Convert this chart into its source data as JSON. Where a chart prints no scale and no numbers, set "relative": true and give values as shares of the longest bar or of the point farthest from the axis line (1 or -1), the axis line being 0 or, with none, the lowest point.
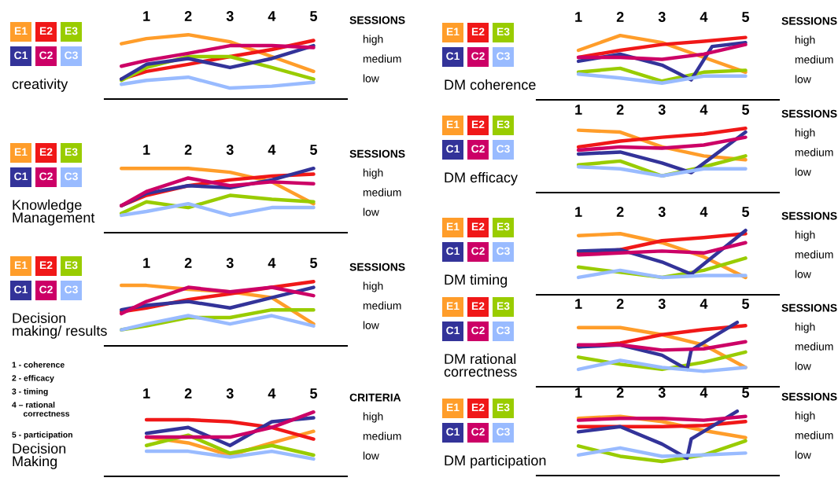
{
  "chart_data": [
    {
      "type": "line",
      "title": "creativity",
      "ylabel": "SESSIONS",
      "legend": "left",
      "relative": true,
      "x": [
        0.4,
        1,
        2,
        3,
        4,
        5
      ],
      "xlim": [
        0,
        5.8
      ],
      "xticks": [
        1,
        2,
        3,
        4,
        5
      ],
      "annotations": [
        "high",
        "medium",
        "low"
      ],
      "series": [
        {
          "name": "E1",
          "color": "#ff9d2a",
          "values": [
            0.86,
            0.94,
            1.0,
            0.89,
            0.66,
            0.43
          ]
        },
        {
          "name": "E2",
          "color": "#f01818",
          "values": [
            0.31,
            0.43,
            0.54,
            0.66,
            0.77,
            0.91
          ]
        },
        {
          "name": "E3",
          "color": "#99cc00",
          "values": [
            0.29,
            0.49,
            0.66,
            0.66,
            0.49,
            0.31
          ]
        },
        {
          "name": "C1",
          "color": "#333399",
          "values": [
            0.31,
            0.54,
            0.63,
            0.49,
            0.63,
            0.83
          ]
        },
        {
          "name": "C2",
          "color": "#cc0066",
          "values": [
            0.51,
            0.6,
            0.71,
            0.83,
            0.83,
            0.8
          ]
        },
        {
          "name": "C3",
          "color": "#99bbff",
          "values": [
            0.23,
            0.29,
            0.34,
            0.17,
            0.2,
            0.26
          ]
        }
      ]
    },
    {
      "type": "line",
      "title": "Knowledge\nManagement",
      "ylabel": "SESSIONS",
      "legend": "left",
      "relative": true,
      "x": [
        0.4,
        1,
        2,
        3,
        4,
        5
      ],
      "xlim": [
        0,
        5.8
      ],
      "xticks": [
        1,
        2,
        3,
        4,
        5
      ],
      "annotations": [
        "high",
        "medium",
        "low"
      ],
      "series": [
        {
          "name": "E1",
          "color": "#ff9d2a",
          "values": [
            1.0,
            1.0,
            1.0,
            0.94,
            0.79,
            0.45
          ]
        },
        {
          "name": "E2",
          "color": "#f01818",
          "values": [
            0.42,
            0.58,
            0.73,
            0.82,
            0.88,
            0.91
          ]
        },
        {
          "name": "E3",
          "color": "#99cc00",
          "values": [
            0.3,
            0.48,
            0.39,
            0.58,
            0.52,
            0.48
          ]
        },
        {
          "name": "C1",
          "color": "#333399",
          "values": [
            0.42,
            0.61,
            0.73,
            0.7,
            0.82,
            1.0
          ]
        },
        {
          "name": "C2",
          "color": "#cc0066",
          "values": [
            0.42,
            0.64,
            0.85,
            0.73,
            0.79,
            0.76
          ]
        },
        {
          "name": "C3",
          "color": "#99bbff",
          "values": [
            0.27,
            0.33,
            0.45,
            0.27,
            0.39,
            0.39
          ]
        }
      ]
    },
    {
      "type": "line",
      "title": "Decision\nmaking/ results",
      "ylabel": "SESSIONS",
      "legend": "left",
      "relative": true,
      "x": [
        0.4,
        1,
        2,
        3,
        4,
        5
      ],
      "xlim": [
        0,
        5.8
      ],
      "xticks": [
        1,
        2,
        3,
        4,
        5
      ],
      "annotations": [
        "high",
        "medium",
        "low"
      ],
      "series": [
        {
          "name": "E1",
          "color": "#ff9d2a",
          "values": [
            0.94,
            0.94,
            0.88,
            0.84,
            0.75,
            0.34
          ]
        },
        {
          "name": "E2",
          "color": "#f01818",
          "values": [
            0.53,
            0.59,
            0.72,
            0.81,
            0.91,
            1.0
          ]
        },
        {
          "name": "E3",
          "color": "#99cc00",
          "values": [
            0.25,
            0.31,
            0.44,
            0.44,
            0.56,
            0.56
          ]
        },
        {
          "name": "C1",
          "color": "#333399",
          "values": [
            0.56,
            0.63,
            0.69,
            0.59,
            0.75,
            0.91
          ]
        },
        {
          "name": "C2",
          "color": "#cc0066",
          "values": [
            0.5,
            0.69,
            0.91,
            0.84,
            0.91,
            0.78
          ]
        },
        {
          "name": "C3",
          "color": "#99bbff",
          "values": [
            0.25,
            0.34,
            0.47,
            0.34,
            0.47,
            0.31
          ]
        }
      ]
    },
    {
      "type": "line",
      "title": "Decision\nMaking",
      "ylabel": "CRITERIA",
      "relative": true,
      "x": [
        1,
        2,
        3,
        4,
        5
      ],
      "xlim": [
        0,
        5.8
      ],
      "xticks": [
        1,
        2,
        3,
        4,
        5
      ],
      "annotations": [
        "1 - coherence",
        "2 - efficacy",
        "3 - timing",
        "4 – rational\n     correctness",
        "5 - participation",
        "high",
        "medium",
        "low"
      ],
      "series": [
        {
          "color": "#ff9d2a",
          "values": [
            0.61,
            0.52,
            0.33,
            0.52,
            0.7
          ]
        },
        {
          "color": "#f01818",
          "values": [
            0.88,
            0.88,
            0.85,
            0.76,
            0.58
          ]
        },
        {
          "color": "#99cc00",
          "values": [
            0.48,
            0.64,
            0.36,
            0.48,
            0.33
          ]
        },
        {
          "color": "#333399",
          "values": [
            0.67,
            0.76,
            0.48,
            0.85,
            0.91
          ]
        },
        {
          "color": "#cc0066",
          "values": [
            0.61,
            0.61,
            0.61,
            0.76,
            1.0
          ]
        },
        {
          "color": "#99bbff",
          "values": [
            0.39,
            0.39,
            0.3,
            0.39,
            0.27
          ]
        }
      ]
    },
    {
      "type": "line",
      "title": "DM coherence",
      "ylabel": "SESSIONS",
      "legend": "left",
      "relative": true,
      "x": [
        1,
        2,
        3,
        4,
        5
      ],
      "xlim": [
        0,
        5.8
      ],
      "xticks": [
        1,
        2,
        3,
        4,
        5
      ],
      "annotations": [
        "high",
        "medium",
        "low"
      ],
      "series": [
        {
          "name": "E1",
          "color": "#ff9d2a",
          "values": [
            0.77,
            1.0,
            0.89,
            0.66,
            0.43
          ]
        },
        {
          "name": "E2",
          "color": "#f01818",
          "values": [
            0.66,
            0.77,
            0.86,
            0.91,
            0.97
          ]
        },
        {
          "name": "E3",
          "color": "#99cc00",
          "values": [
            0.43,
            0.49,
            0.29,
            0.43,
            0.46
          ]
        },
        {
          "name": "C1",
          "color": "#333399",
          "x": [
            1,
            2,
            3,
            3.7,
            4.2,
            5
          ],
          "values": [
            0.6,
            0.71,
            0.54,
            0.31,
            0.83,
            0.89
          ]
        },
        {
          "name": "C2",
          "color": "#cc0066",
          "values": [
            0.66,
            0.66,
            0.63,
            0.71,
            0.86
          ]
        },
        {
          "name": "C3",
          "color": "#99bbff",
          "values": [
            0.4,
            0.34,
            0.26,
            0.37,
            0.37
          ]
        }
      ]
    },
    {
      "type": "line",
      "title": "DM efficacy",
      "ylabel": "SESSIONS",
      "legend": "left",
      "relative": true,
      "x": [
        1,
        2,
        3,
        4,
        5
      ],
      "xlim": [
        0,
        5.8
      ],
      "xticks": [
        1,
        2,
        3,
        4,
        5
      ],
      "annotations": [
        "high",
        "medium",
        "low"
      ],
      "series": [
        {
          "name": "E1",
          "color": "#ff9d2a",
          "values": [
            0.97,
            0.94,
            0.71,
            0.57,
            0.51
          ]
        },
        {
          "name": "E2",
          "color": "#f01818",
          "values": [
            0.71,
            0.8,
            0.86,
            0.91,
            1.0
          ]
        },
        {
          "name": "E3",
          "color": "#99cc00",
          "values": [
            0.43,
            0.49,
            0.26,
            0.4,
            0.57
          ]
        },
        {
          "name": "C1",
          "color": "#333399",
          "x": [
            1,
            2,
            3,
            3.7,
            5
          ],
          "values": [
            0.6,
            0.63,
            0.46,
            0.31,
            0.94
          ]
        },
        {
          "name": "C2",
          "color": "#cc0066",
          "values": [
            0.66,
            0.71,
            0.69,
            0.74,
            0.86
          ]
        },
        {
          "name": "C3",
          "color": "#99bbff",
          "values": [
            0.4,
            0.37,
            0.26,
            0.37,
            0.37
          ]
        }
      ]
    },
    {
      "type": "line",
      "title": "DM timing",
      "ylabel": "SESSIONS",
      "legend": "left",
      "relative": true,
      "x": [
        1,
        2,
        3,
        4,
        5
      ],
      "xlim": [
        0,
        5.8
      ],
      "xticks": [
        1,
        2,
        3,
        4,
        5
      ],
      "annotations": [
        "high",
        "medium",
        "low"
      ],
      "series": [
        {
          "name": "E1",
          "color": "#ff9d2a",
          "values": [
            0.92,
            0.95,
            0.81,
            0.59,
            0.27
          ]
        },
        {
          "name": "E2",
          "color": "#f01818",
          "values": [
            0.65,
            0.7,
            0.84,
            0.89,
            0.95
          ]
        },
        {
          "name": "E3",
          "color": "#99cc00",
          "values": [
            0.43,
            0.35,
            0.27,
            0.38,
            0.57
          ]
        },
        {
          "name": "C1",
          "color": "#333399",
          "x": [
            1,
            2,
            3,
            3.7,
            5
          ],
          "values": [
            0.68,
            0.7,
            0.51,
            0.32,
            1.0
          ]
        },
        {
          "name": "C2",
          "color": "#cc0066",
          "values": [
            0.62,
            0.65,
            0.68,
            0.65,
            0.81
          ]
        },
        {
          "name": "C3",
          "color": "#99bbff",
          "values": [
            0.27,
            0.38,
            0.27,
            0.3,
            0.3
          ]
        }
      ]
    },
    {
      "type": "line",
      "title": "DM rational\ncorrectness",
      "ylabel": "SESSIONS",
      "legend": "left",
      "relative": true,
      "x": [
        1,
        2,
        3,
        4,
        5
      ],
      "xlim": [
        0,
        5.8
      ],
      "xticks": [
        1,
        2,
        3,
        4,
        5
      ],
      "annotations": [
        "high",
        "medium",
        "low"
      ],
      "series": [
        {
          "name": "E1",
          "color": "#ff9d2a",
          "values": [
            0.92,
            0.92,
            0.81,
            0.65,
            0.3
          ]
        },
        {
          "name": "E2",
          "color": "#f01818",
          "values": [
            0.62,
            0.68,
            0.81,
            0.89,
            0.95
          ]
        },
        {
          "name": "E3",
          "color": "#99cc00",
          "values": [
            0.46,
            0.35,
            0.27,
            0.38,
            0.54
          ]
        },
        {
          "name": "C1",
          "color": "#333399",
          "x": [
            1,
            2,
            3,
            3.6,
            3.7,
            4.8
          ],
          "values": [
            0.62,
            0.65,
            0.49,
            0.27,
            0.57,
            1.0
          ]
        },
        {
          "name": "C2",
          "color": "#cc0066",
          "values": [
            0.65,
            0.65,
            0.57,
            0.59,
            0.7
          ]
        },
        {
          "name": "C3",
          "color": "#99bbff",
          "values": [
            0.27,
            0.41,
            0.3,
            0.24,
            0.3
          ]
        }
      ]
    },
    {
      "type": "line",
      "title": "DM participation",
      "ylabel": "SESSIONS",
      "legend": "left",
      "relative": true,
      "x": [
        1,
        2,
        3,
        4,
        5
      ],
      "xlim": [
        0,
        5.8
      ],
      "xticks": [
        1,
        2,
        3,
        4,
        5
      ],
      "annotations": [
        "high",
        "medium",
        "low"
      ],
      "series": [
        {
          "name": "E1",
          "color": "#ff9d2a",
          "values": [
            0.89,
            0.92,
            0.84,
            0.7,
            0.59
          ]
        },
        {
          "name": "E2",
          "color": "#f01818",
          "values": [
            0.76,
            0.76,
            0.76,
            0.78,
            0.84
          ]
        },
        {
          "name": "E3",
          "color": "#99cc00",
          "values": [
            0.46,
            0.3,
            0.22,
            0.32,
            0.54
          ]
        },
        {
          "name": "C1",
          "color": "#333399",
          "x": [
            1,
            2,
            3,
            3.6,
            3.7,
            4.8
          ],
          "values": [
            0.68,
            0.76,
            0.49,
            0.27,
            0.57,
            1.0
          ]
        },
        {
          "name": "C2",
          "color": "#cc0066",
          "values": [
            0.86,
            0.89,
            0.89,
            0.86,
            0.92
          ]
        },
        {
          "name": "C3",
          "color": "#99bbff",
          "values": [
            0.32,
            0.43,
            0.3,
            0.32,
            0.35
          ]
        }
      ]
    }
  ]
}
